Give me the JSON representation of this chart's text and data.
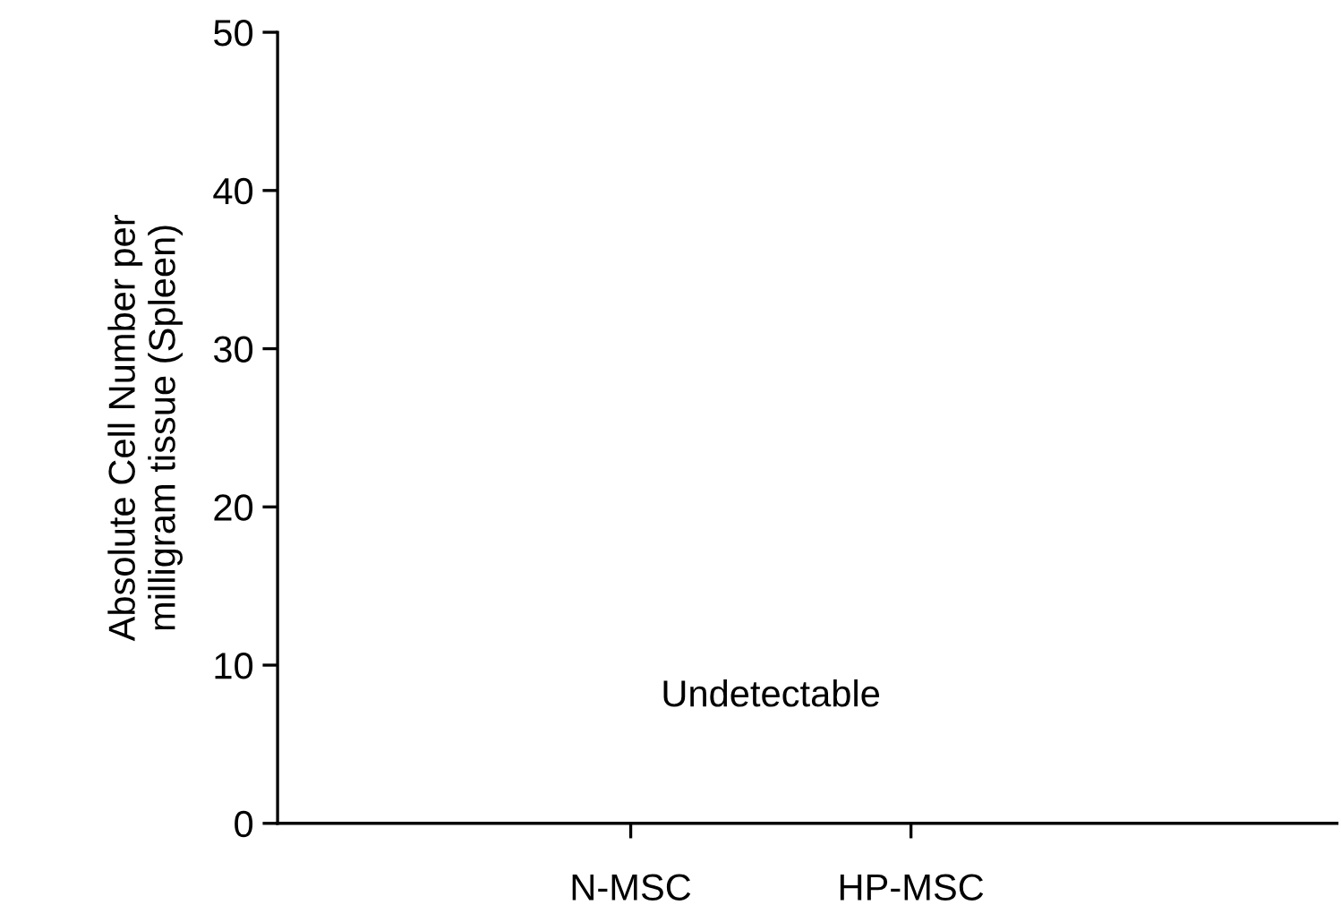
{
  "chart_data": {
    "type": "bar",
    "ylabel": "Absolute Cell Number per\nmilligram tissue (Spleen)",
    "categories": [
      "N-MSC",
      "HP-MSC"
    ],
    "values": [
      0,
      0
    ],
    "ylim": [
      0,
      50
    ],
    "yticks": [
      0,
      10,
      20,
      30,
      40,
      50
    ],
    "annotations": [
      "Undetectable"
    ],
    "grid": false,
    "legend": false
  }
}
